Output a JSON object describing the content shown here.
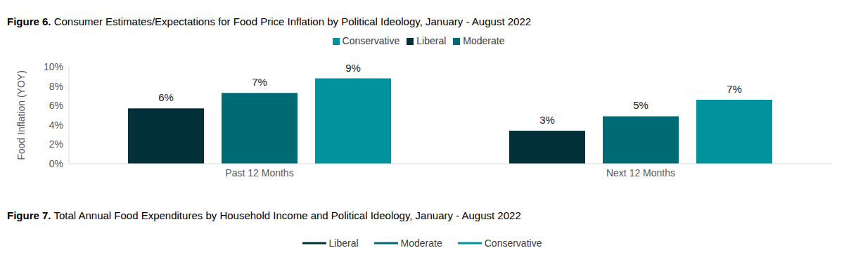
{
  "chart_data": [
    {
      "type": "bar",
      "title": "Figure 6. Consumer Estimates/Expectations for Food Price Inflation by Political Ideology, January - August 2022",
      "y_label": "Food Inflation (YOY)",
      "categories": [
        "Past 12 Months",
        "Next 12 Months"
      ],
      "series": [
        {
          "name": "Liberal",
          "color": "#03313a",
          "values": [
            5.7,
            3.4
          ],
          "value_labels": [
            "6%",
            "3%"
          ]
        },
        {
          "name": "Moderate",
          "color": "#006a74",
          "values": [
            7.3,
            4.9
          ],
          "value_labels": [
            "7%",
            "5%"
          ]
        },
        {
          "name": "Conservative",
          "color": "#00929d",
          "values": [
            8.8,
            6.6
          ],
          "value_labels": [
            "9%",
            "7%"
          ]
        }
      ],
      "ylim": [
        0,
        10
      ],
      "yticks": [
        {
          "value": 0,
          "label": "0%"
        },
        {
          "value": 2,
          "label": "2%"
        },
        {
          "value": 4,
          "label": "4%"
        },
        {
          "value": 6,
          "label": "6%"
        },
        {
          "value": 8,
          "label": "8%"
        },
        {
          "value": 10,
          "label": "10%"
        }
      ],
      "grid": false,
      "legend": "top",
      "data_labels": true
    },
    {
      "type": "line",
      "title": "Figure 7. Total Annual Food Expenditures by Household Income and Political Ideology, January - August 2022",
      "categories": [],
      "series": [
        {
          "name": "Liberal",
          "color": "#03313a",
          "values": []
        },
        {
          "name": "Moderate",
          "color": "#006a74",
          "values": []
        },
        {
          "name": "Conservative",
          "color": "#00929d",
          "values": []
        }
      ],
      "legend": "top"
    }
  ]
}
